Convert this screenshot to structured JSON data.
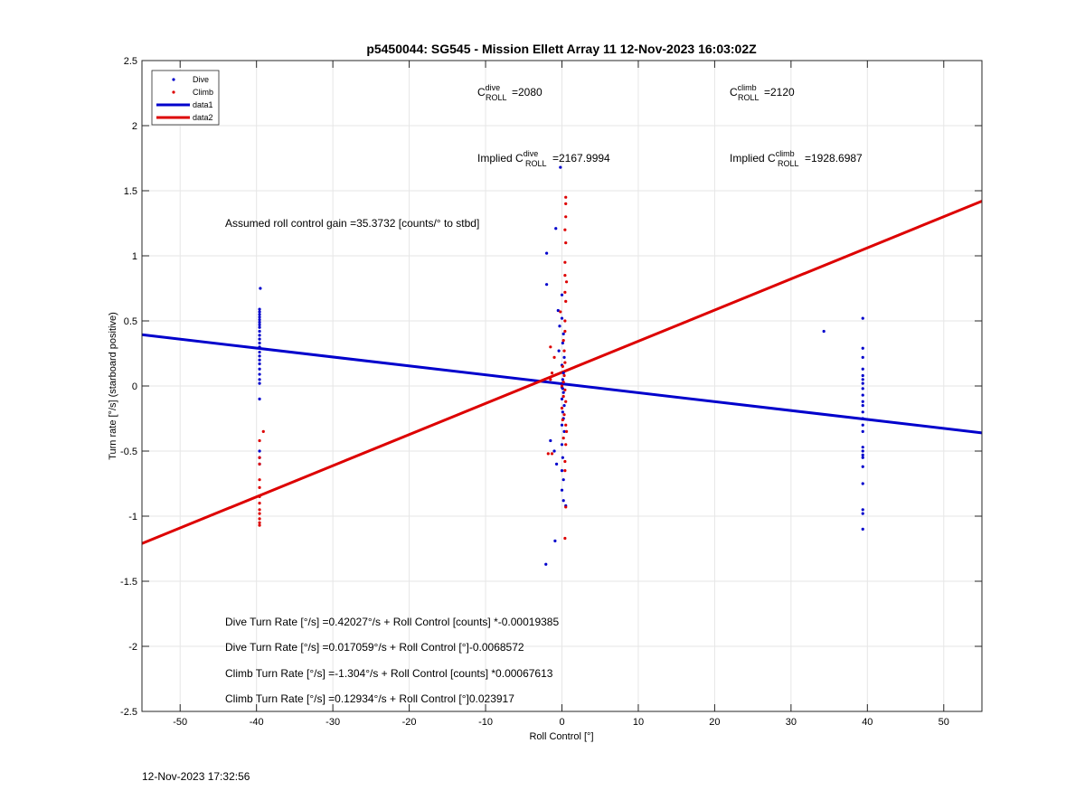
{
  "chart_data": {
    "type": "scatter",
    "title": "p5450044: SG545 - Mission Ellett Array 11 12-Nov-2023 16:03:02Z",
    "xlabel": "Roll Control [°]",
    "ylabel": "Turn rate [°/s] (starboard positive)",
    "xlim": [
      -55,
      55
    ],
    "ylim": [
      -2.5,
      2.5
    ],
    "xticks": [
      -50,
      -40,
      -30,
      -20,
      -10,
      0,
      10,
      20,
      30,
      40,
      50
    ],
    "yticks": [
      -2.5,
      -2,
      -1.5,
      -1,
      -0.5,
      0,
      0.5,
      1,
      1.5,
      2,
      2.5
    ],
    "grid": true,
    "legend": {
      "position": "top-left",
      "entries": [
        {
          "label": "Dive",
          "color": "#0000cc",
          "style": "point"
        },
        {
          "label": "Climb",
          "color": "#dd0000",
          "style": "point"
        },
        {
          "label": "data1",
          "color": "#0000cc",
          "style": "line"
        },
        {
          "label": "data2",
          "color": "#dd0000",
          "style": "line"
        }
      ]
    },
    "colors": {
      "dive": "#0000cc",
      "climb": "#dd0000"
    },
    "series": [
      {
        "name": "Dive",
        "style": "point",
        "color": "#0000cc",
        "points": [
          [
            -39.5,
            0.75
          ],
          [
            -39.6,
            0.59
          ],
          [
            -39.6,
            0.57
          ],
          [
            -39.6,
            0.55
          ],
          [
            -39.6,
            0.53
          ],
          [
            -39.6,
            0.51
          ],
          [
            -39.6,
            0.49
          ],
          [
            -39.6,
            0.47
          ],
          [
            -39.6,
            0.45
          ],
          [
            -39.6,
            0.42
          ],
          [
            -39.6,
            0.39
          ],
          [
            -39.6,
            0.36
          ],
          [
            -39.6,
            0.33
          ],
          [
            -39.6,
            0.3
          ],
          [
            -39.6,
            0.26
          ],
          [
            -39.6,
            0.23
          ],
          [
            -39.6,
            0.2
          ],
          [
            -39.6,
            0.17
          ],
          [
            -39.6,
            0.13
          ],
          [
            -39.6,
            0.09
          ],
          [
            -39.6,
            0.05
          ],
          [
            -39.6,
            0.02
          ],
          [
            -39.6,
            -0.1
          ],
          [
            -39.6,
            -0.5
          ],
          [
            -39.6,
            -0.55
          ],
          [
            -39.6,
            -0.6
          ],
          [
            -0.2,
            1.68
          ],
          [
            -0.8,
            1.21
          ],
          [
            -2,
            1.02
          ],
          [
            -2,
            0.78
          ],
          [
            0,
            0.7
          ],
          [
            -0.5,
            0.58
          ],
          [
            0,
            0.52
          ],
          [
            -0.3,
            0.46
          ],
          [
            0.2,
            0.4
          ],
          [
            0.1,
            0.33
          ],
          [
            -0.4,
            0.27
          ],
          [
            0.3,
            0.22
          ],
          [
            0,
            0.16
          ],
          [
            0.2,
            0.1
          ],
          [
            0.1,
            0.05
          ],
          [
            0,
            0.02
          ],
          [
            0,
            -0.01
          ],
          [
            0.1,
            -0.02
          ],
          [
            0.2,
            -0.05
          ],
          [
            0,
            -0.1
          ],
          [
            0.3,
            -0.15
          ],
          [
            0.1,
            -0.2
          ],
          [
            0.2,
            -0.25
          ],
          [
            0,
            -0.3
          ],
          [
            0.3,
            -0.35
          ],
          [
            -1.5,
            -0.42
          ],
          [
            0,
            -0.45
          ],
          [
            -1,
            -0.5
          ],
          [
            0.1,
            -0.55
          ],
          [
            -0.7,
            -0.6
          ],
          [
            0,
            -0.65
          ],
          [
            0.2,
            -0.72
          ],
          [
            0,
            -0.8
          ],
          [
            0.2,
            -0.88
          ],
          [
            0.5,
            -0.92
          ],
          [
            -0.9,
            -1.19
          ],
          [
            -2.1,
            -1.37
          ],
          [
            34.3,
            0.42
          ],
          [
            39.4,
            0.52
          ],
          [
            39.4,
            0.29
          ],
          [
            39.4,
            0.22
          ],
          [
            39.4,
            0.13
          ],
          [
            39.4,
            0.08
          ],
          [
            39.4,
            0.05
          ],
          [
            39.4,
            0.02
          ],
          [
            39.4,
            -0.02
          ],
          [
            39.4,
            -0.07
          ],
          [
            39.4,
            -0.12
          ],
          [
            39.4,
            -0.15
          ],
          [
            39.4,
            -0.2
          ],
          [
            39.4,
            -0.25
          ],
          [
            39.4,
            -0.3
          ],
          [
            39.4,
            -0.35
          ],
          [
            39.4,
            -0.47
          ],
          [
            39.4,
            -0.5
          ],
          [
            39.4,
            -0.53
          ],
          [
            39.4,
            -0.55
          ],
          [
            39.4,
            -0.62
          ],
          [
            39.4,
            -0.75
          ],
          [
            39.4,
            -0.95
          ],
          [
            39.4,
            -0.98
          ],
          [
            39.4,
            -1.1
          ]
        ]
      },
      {
        "name": "Climb",
        "style": "point",
        "color": "#dd0000",
        "points": [
          [
            -39.1,
            -0.35
          ],
          [
            -39.6,
            -0.42
          ],
          [
            -39.6,
            -0.55
          ],
          [
            -39.6,
            -0.6
          ],
          [
            -39.6,
            -0.72
          ],
          [
            -39.6,
            -0.78
          ],
          [
            -39.6,
            -0.85
          ],
          [
            -39.6,
            -0.9
          ],
          [
            -39.6,
            -0.95
          ],
          [
            -39.6,
            -0.98
          ],
          [
            -39.6,
            -1.02
          ],
          [
            -39.6,
            -1.05
          ],
          [
            -39.6,
            -1.07
          ],
          [
            0.5,
            1.45
          ],
          [
            0.5,
            1.4
          ],
          [
            0.5,
            1.3
          ],
          [
            0.4,
            1.2
          ],
          [
            0.5,
            1.1
          ],
          [
            0.4,
            0.95
          ],
          [
            0.4,
            0.85
          ],
          [
            0.6,
            0.8
          ],
          [
            0.4,
            0.72
          ],
          [
            0.5,
            0.65
          ],
          [
            -0.2,
            0.57
          ],
          [
            0.4,
            0.5
          ],
          [
            0.4,
            0.42
          ],
          [
            0.2,
            0.35
          ],
          [
            -1.5,
            0.3
          ],
          [
            0.3,
            0.27
          ],
          [
            -1,
            0.22
          ],
          [
            0.4,
            0.18
          ],
          [
            0.1,
            0.15
          ],
          [
            -1.3,
            0.1
          ],
          [
            0.3,
            0.08
          ],
          [
            -1.5,
            0.05
          ],
          [
            0.2,
            0.03
          ],
          [
            0,
            0
          ],
          [
            0.4,
            -0.03
          ],
          [
            0.2,
            -0.08
          ],
          [
            0.5,
            -0.12
          ],
          [
            0,
            -0.17
          ],
          [
            0.3,
            -0.22
          ],
          [
            0.1,
            -0.26
          ],
          [
            0.5,
            -0.3
          ],
          [
            0.6,
            -0.35
          ],
          [
            0.2,
            -0.4
          ],
          [
            0.5,
            -0.45
          ],
          [
            -1.3,
            -0.52
          ],
          [
            -1.8,
            -0.52
          ],
          [
            0.4,
            -0.58
          ],
          [
            0.4,
            -0.65
          ],
          [
            0.5,
            -0.93
          ],
          [
            0.4,
            -1.17
          ]
        ]
      },
      {
        "name": "data1",
        "style": "line",
        "color": "#0000cc",
        "x": [
          -55,
          55
        ],
        "y": [
          0.394,
          -0.36
        ]
      },
      {
        "name": "data2",
        "style": "line",
        "color": "#dd0000",
        "x": [
          -55,
          55
        ],
        "y": [
          -1.21,
          1.42
        ]
      }
    ],
    "annotations": {
      "c_dive": {
        "prefix": "C",
        "sup": "dive",
        "sub": "ROLL",
        "value": "=2080"
      },
      "c_climb": {
        "prefix": "C",
        "sup": "climb",
        "sub": "ROLL",
        "value": "=2120"
      },
      "implied_dive": {
        "prefix": "Implied C",
        "sup": "dive",
        "sub": "ROLL",
        "value": "=2167.9994"
      },
      "implied_climb": {
        "prefix": "Implied C",
        "sup": "climb",
        "sub": "ROLL",
        "value": "=1928.6987"
      },
      "gain": "Assumed roll control gain =35.3732 [counts/° to stbd]",
      "eq1": "Dive Turn Rate [°/s] =0.42027°/s + Roll Control [counts] *-0.00019385",
      "eq2": "Dive Turn Rate [°/s] =0.017059°/s + Roll Control [°]-0.0068572",
      "eq3": "Climb Turn Rate [°/s] =-1.304°/s + Roll Control [counts] *0.00067613",
      "eq4": "Climb Turn Rate [°/s] =0.12934°/s + Roll Control [°]0.023917"
    }
  },
  "footer": {
    "timestamp": "12-Nov-2023 17:32:56"
  }
}
